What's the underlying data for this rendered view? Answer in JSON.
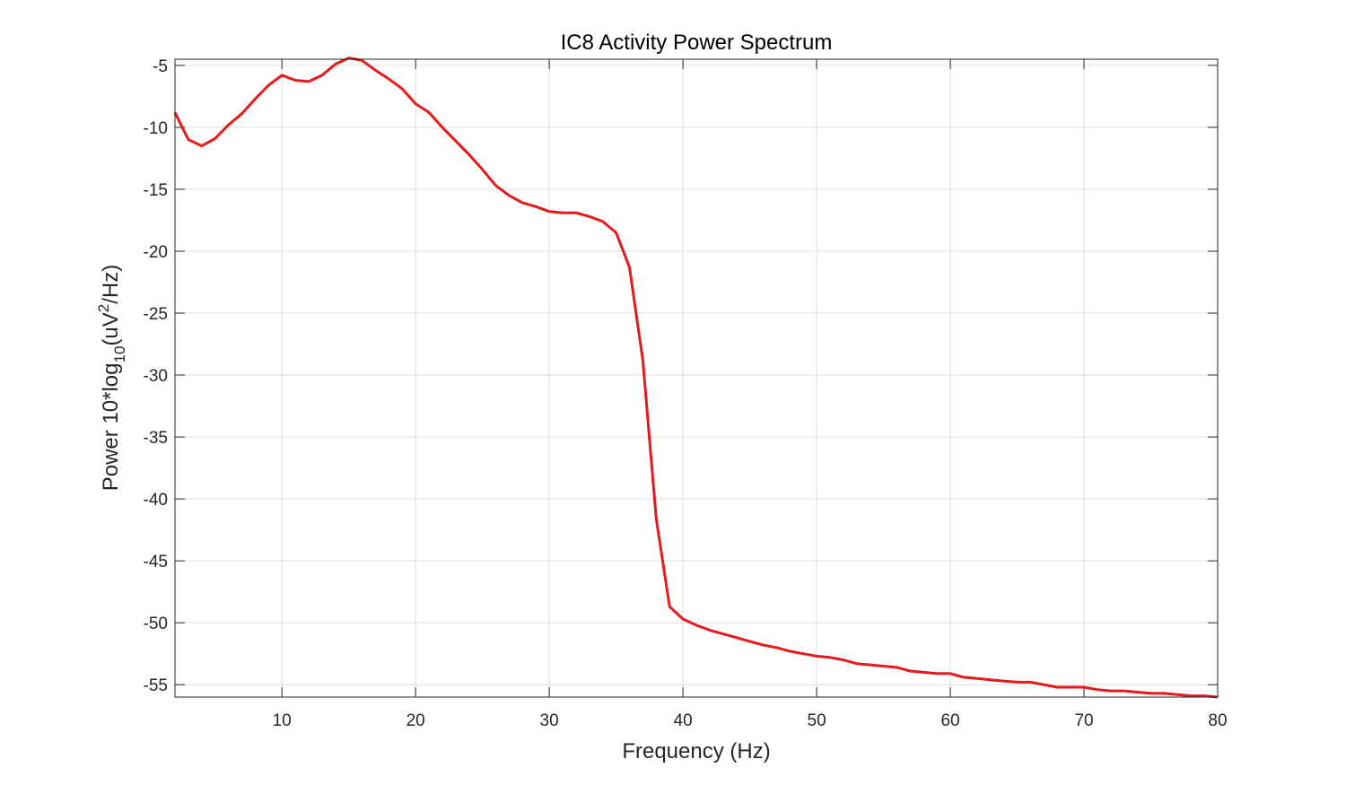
{
  "chart_data": {
    "type": "line",
    "title": "IC8 Activity Power Spectrum",
    "xlabel": "Frequency (Hz)",
    "ylabel": {
      "prefix": "Power 10*log",
      "subscript": "10",
      "middle": "(uV",
      "superscript": "2",
      "suffix": "/Hz)"
    },
    "xlim": [
      2,
      80
    ],
    "ylim": [
      -56,
      -4.5
    ],
    "xticks": [
      10,
      20,
      30,
      40,
      50,
      60,
      70,
      80
    ],
    "yticks": [
      -5,
      -10,
      -15,
      -20,
      -25,
      -30,
      -35,
      -40,
      -45,
      -50,
      -55
    ],
    "grid": true,
    "series": [
      {
        "color": "#e8191a",
        "x": [
          2,
          3,
          4,
          5,
          6,
          7,
          8,
          9,
          10,
          11,
          12,
          13,
          14,
          15,
          16,
          17,
          18,
          19,
          20,
          21,
          22,
          23,
          24,
          25,
          26,
          27,
          28,
          29,
          30,
          31,
          32,
          33,
          34,
          35,
          36,
          37,
          38,
          39,
          40,
          41,
          42,
          43,
          44,
          45,
          46,
          47,
          48,
          49,
          50,
          51,
          52,
          53,
          54,
          55,
          56,
          57,
          58,
          59,
          60,
          61,
          62,
          63,
          64,
          65,
          66,
          67,
          68,
          69,
          70,
          71,
          72,
          73,
          74,
          75,
          76,
          77,
          78,
          79,
          80
        ],
        "y": [
          -8.8,
          -11.0,
          -11.5,
          -10.9,
          -9.8,
          -8.9,
          -7.7,
          -6.6,
          -5.8,
          -6.2,
          -6.3,
          -5.8,
          -4.9,
          -4.4,
          -4.6,
          -5.4,
          -6.1,
          -6.9,
          -8.1,
          -8.8,
          -10.0,
          -11.1,
          -12.2,
          -13.4,
          -14.7,
          -15.5,
          -16.1,
          -16.4,
          -16.8,
          -16.9,
          -16.9,
          -17.2,
          -17.6,
          -18.5,
          -21.3,
          -28.8,
          -41.6,
          -48.7,
          -49.7,
          -50.2,
          -50.6,
          -50.9,
          -51.2,
          -51.5,
          -51.8,
          -52.0,
          -52.3,
          -52.5,
          -52.7,
          -52.8,
          -53.0,
          -53.3,
          -53.4,
          -53.5,
          -53.6,
          -53.9,
          -54.0,
          -54.1,
          -54.1,
          -54.4,
          -54.5,
          -54.6,
          -54.7,
          -54.8,
          -54.8,
          -55.0,
          -55.2,
          -55.2,
          -55.2,
          -55.4,
          -55.5,
          -55.5,
          -55.6,
          -55.7,
          -55.7,
          -55.8,
          -55.9,
          -55.9,
          -56.0
        ]
      }
    ]
  }
}
